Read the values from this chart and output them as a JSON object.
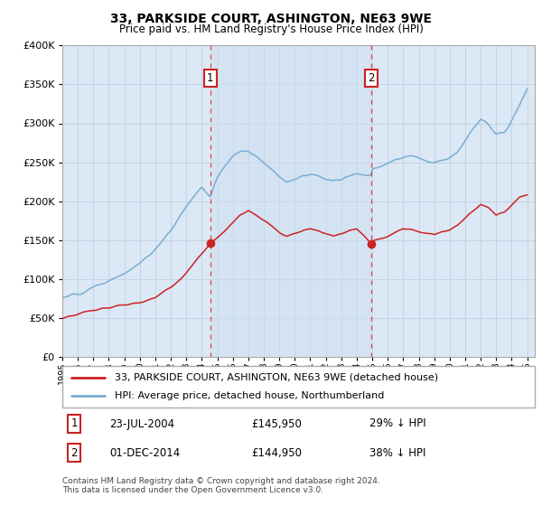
{
  "title1": "33, PARKSIDE COURT, ASHINGTON, NE63 9WE",
  "title2": "Price paid vs. HM Land Registry's House Price Index (HPI)",
  "ylim": [
    0,
    400000
  ],
  "xlim_start": 1995.0,
  "xlim_end": 2025.5,
  "hpi_color": "#7aadd4",
  "price_color": "#cc2222",
  "background_color": "#dce8f5",
  "grid_color": "#c8d8e8",
  "sale1_x": 2004.55,
  "sale1_y": 145950,
  "sale2_x": 2014.92,
  "sale2_y": 144950,
  "legend_line1": "33, PARKSIDE COURT, ASHINGTON, NE63 9WE (detached house)",
  "legend_line2": "HPI: Average price, detached house, Northumberland",
  "table_row1": [
    "1",
    "23-JUL-2004",
    "£145,950",
    "29% ↓ HPI"
  ],
  "table_row2": [
    "2",
    "01-DEC-2014",
    "£144,950",
    "38% ↓ HPI"
  ],
  "footnote": "Contains HM Land Registry data © Crown copyright and database right 2024.\nThis data is licensed under the Open Government Licence v3.0.",
  "hpi_t": [
    1995.0,
    1995.5,
    1996.0,
    1996.5,
    1997.0,
    1997.5,
    1998.0,
    1998.5,
    1999.0,
    1999.5,
    2000.0,
    2000.5,
    2001.0,
    2001.5,
    2002.0,
    2002.5,
    2003.0,
    2003.5,
    2004.0,
    2004.55,
    2005.0,
    2005.5,
    2006.0,
    2006.5,
    2007.0,
    2007.5,
    2008.0,
    2008.5,
    2009.0,
    2009.5,
    2010.0,
    2010.5,
    2011.0,
    2011.5,
    2012.0,
    2012.5,
    2013.0,
    2013.5,
    2014.0,
    2014.92,
    2015.0,
    2015.5,
    2016.0,
    2016.5,
    2017.0,
    2017.5,
    2018.0,
    2018.5,
    2019.0,
    2019.5,
    2020.0,
    2020.5,
    2021.0,
    2021.5,
    2022.0,
    2022.5,
    2023.0,
    2023.5,
    2024.0,
    2024.5,
    2025.0
  ],
  "hpi_v": [
    77000,
    78000,
    81000,
    84000,
    88000,
    93000,
    98000,
    102000,
    107000,
    113000,
    120000,
    128000,
    138000,
    150000,
    163000,
    178000,
    193000,
    208000,
    218000,
    205000,
    230000,
    248000,
    258000,
    263000,
    265000,
    258000,
    250000,
    242000,
    232000,
    225000,
    228000,
    233000,
    235000,
    232000,
    228000,
    225000,
    228000,
    232000,
    235000,
    233000,
    240000,
    245000,
    248000,
    252000,
    255000,
    258000,
    255000,
    252000,
    250000,
    253000,
    255000,
    262000,
    278000,
    292000,
    305000,
    298000,
    285000,
    290000,
    305000,
    325000,
    345000
  ],
  "price_t": [
    1995.0,
    1995.5,
    1996.0,
    1996.5,
    1997.0,
    1997.5,
    1998.0,
    1998.5,
    1999.0,
    1999.5,
    2000.0,
    2000.5,
    2001.0,
    2001.5,
    2002.0,
    2002.5,
    2003.0,
    2003.5,
    2004.0,
    2004.55,
    2005.0,
    2005.5,
    2006.0,
    2006.5,
    2007.0,
    2007.5,
    2008.0,
    2008.5,
    2009.0,
    2009.5,
    2010.0,
    2010.5,
    2011.0,
    2011.5,
    2012.0,
    2012.5,
    2013.0,
    2013.5,
    2014.0,
    2014.92,
    2015.0,
    2015.5,
    2016.0,
    2016.5,
    2017.0,
    2017.5,
    2018.0,
    2018.5,
    2019.0,
    2019.5,
    2020.0,
    2020.5,
    2021.0,
    2021.5,
    2022.0,
    2022.5,
    2023.0,
    2023.5,
    2024.0,
    2024.5,
    2025.0
  ],
  "price_v": [
    50000,
    52000,
    55000,
    58000,
    60000,
    62000,
    63000,
    65000,
    67000,
    68000,
    70000,
    73000,
    77000,
    83000,
    90000,
    98000,
    108000,
    120000,
    133000,
    145950,
    152000,
    162000,
    172000,
    182000,
    188000,
    182000,
    175000,
    168000,
    160000,
    155000,
    158000,
    162000,
    165000,
    162000,
    158000,
    155000,
    158000,
    162000,
    165000,
    144950,
    148000,
    152000,
    155000,
    160000,
    165000,
    163000,
    160000,
    158000,
    157000,
    160000,
    162000,
    168000,
    178000,
    188000,
    196000,
    192000,
    182000,
    186000,
    195000,
    205000,
    208000
  ]
}
